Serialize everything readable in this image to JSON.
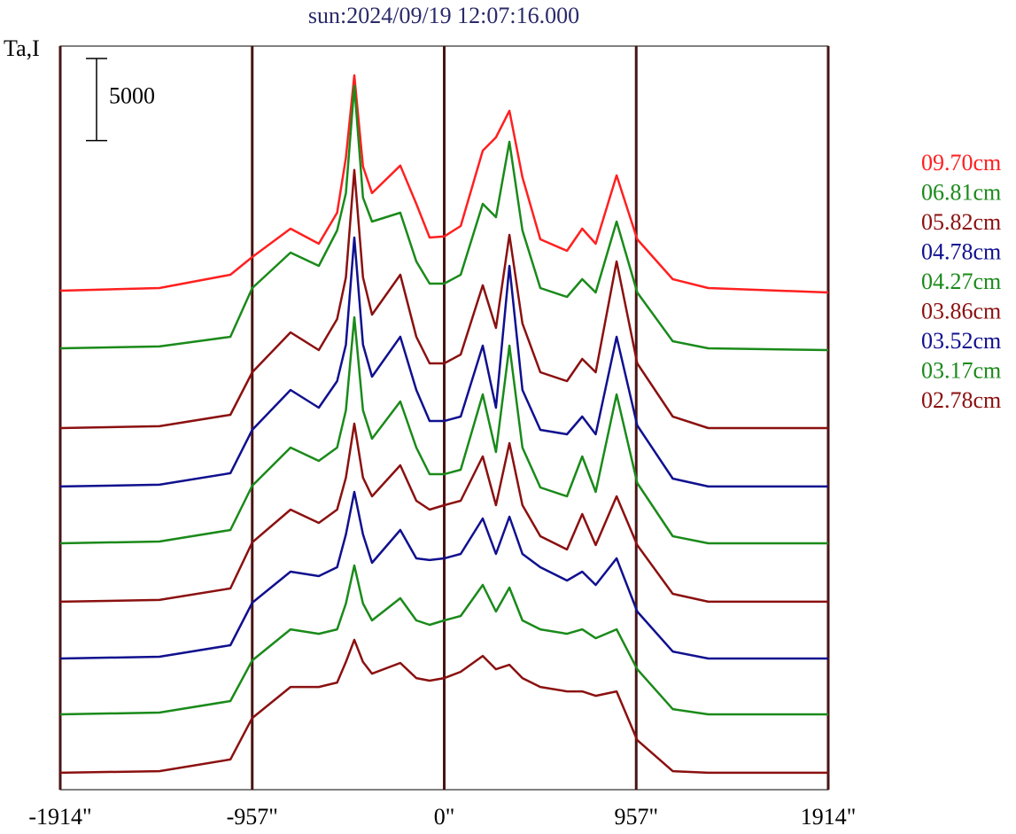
{
  "chart_data": {
    "type": "line",
    "title": "sun:2024/09/19 12:07:16.000",
    "ylabel": "Ta,I",
    "scale_bar": 5000,
    "xlim": [
      -1914,
      1914
    ],
    "ylim": [
      0,
      45300
    ],
    "xticks": [
      {
        "value": -1914,
        "label": "-1914\""
      },
      {
        "value": -957,
        "label": "-957\""
      },
      {
        "value": 0,
        "label": "0\""
      },
      {
        "value": 957,
        "label": "957\""
      },
      {
        "value": 1914,
        "label": "1914\""
      }
    ],
    "grid": true,
    "legend": "right",
    "x": [
      -1914,
      -1420,
      -1066,
      -957,
      -766,
      -625,
      -534,
      -490,
      -448,
      -405,
      -360,
      -219,
      -139,
      -73,
      0,
      82,
      192,
      258,
      325,
      390,
      479,
      612,
      688,
      755,
      859,
      962,
      1139,
      1316,
      1914
    ],
    "series": [
      {
        "name": "09.70cm",
        "color": "#ff2020",
        "values": [
          30400,
          30560,
          31370,
          32450,
          34180,
          33260,
          35150,
          38500,
          43520,
          37960,
          36340,
          38020,
          35690,
          33640,
          33700,
          34340,
          38930,
          39740,
          41360,
          37310,
          33530,
          32830,
          34180,
          33260,
          37420,
          33530,
          31100,
          30560,
          30290
        ]
      },
      {
        "name": "06.81cm",
        "color": "#1a8a1a",
        "values": [
          26890,
          27000,
          27590,
          30560,
          32720,
          31910,
          34070,
          36340,
          42880,
          36070,
          34610,
          35150,
          32180,
          30830,
          30830,
          31370,
          35690,
          34880,
          39470,
          34070,
          30560,
          30020,
          31100,
          30290,
          34610,
          30290,
          27320,
          26890,
          26780
        ]
      },
      {
        "name": "05.82cm",
        "color": "#8b1010",
        "values": [
          22030,
          22140,
          22840,
          25430,
          27860,
          26780,
          28670,
          31210,
          37750,
          31210,
          28940,
          31370,
          27590,
          25970,
          25970,
          26510,
          30730,
          28130,
          33800,
          28400,
          25430,
          24890,
          26240,
          25430,
          32180,
          25970,
          22730,
          22030,
          22030
        ]
      },
      {
        "name": "04.78cm",
        "color": "#10108f",
        "values": [
          18470,
          18580,
          19280,
          21920,
          24350,
          23270,
          24890,
          27110,
          33640,
          27110,
          25160,
          27590,
          24350,
          22460,
          22460,
          22730,
          27050,
          23270,
          31910,
          24350,
          21920,
          21650,
          22730,
          21650,
          27590,
          22190,
          18950,
          18470,
          18470
        ]
      },
      {
        "name": "04.27cm",
        "color": "#1a8a1a",
        "values": [
          15010,
          15120,
          15820,
          18520,
          20840,
          20030,
          20840,
          23110,
          28780,
          23110,
          21380,
          23650,
          20840,
          19220,
          19220,
          19490,
          24080,
          20570,
          27050,
          20840,
          18410,
          17870,
          20300,
          18140,
          24080,
          18680,
          15440,
          15010,
          15010
        ]
      },
      {
        "name": "03.86cm",
        "color": "#8b1010",
        "values": [
          11450,
          11560,
          12260,
          15070,
          17060,
          16250,
          17060,
          19010,
          22300,
          19010,
          17870,
          19760,
          17600,
          17060,
          17330,
          17600,
          20300,
          17330,
          21110,
          17330,
          15440,
          14630,
          16790,
          14900,
          17870,
          14900,
          11930,
          11450,
          11450
        ]
      },
      {
        "name": "03.52cm",
        "color": "#10108f",
        "values": [
          7990,
          8100,
          8800,
          11390,
          13280,
          13010,
          13550,
          15550,
          18140,
          15550,
          13820,
          15820,
          14090,
          13990,
          14090,
          14360,
          16520,
          14360,
          16630,
          14360,
          13550,
          12740,
          13280,
          12470,
          14090,
          10850,
          8420,
          7990,
          7990
        ]
      },
      {
        "name": "03.17cm",
        "color": "#1a8a1a",
        "values": [
          4590,
          4700,
          5400,
          7880,
          9770,
          9500,
          9770,
          11340,
          13660,
          11340,
          10310,
          11660,
          10310,
          10040,
          10310,
          10580,
          12470,
          10850,
          12310,
          10310,
          9770,
          9500,
          9770,
          9230,
          9770,
          7340,
          4910,
          4590,
          4590
        ]
      },
      {
        "name": "02.78cm",
        "color": "#8b1010",
        "values": [
          1030,
          1130,
          1840,
          4370,
          6260,
          6260,
          6530,
          7780,
          9130,
          7780,
          7070,
          7720,
          6800,
          6640,
          6800,
          7180,
          8150,
          7340,
          7610,
          6800,
          6260,
          5990,
          5990,
          5720,
          5990,
          3020,
          1130,
          1030,
          1030
        ]
      }
    ]
  }
}
